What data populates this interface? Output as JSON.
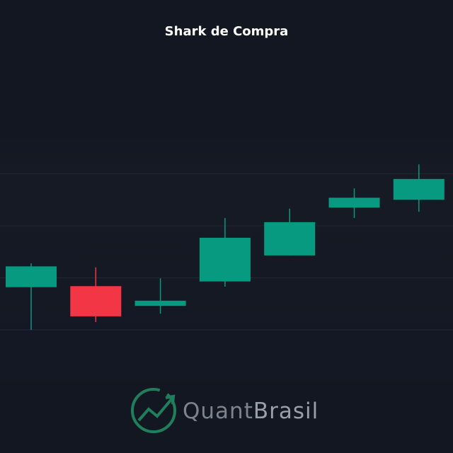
{
  "chart_data": {
    "type": "candlestick",
    "title": "Shark de Compra",
    "categories": [
      null,
      null,
      null,
      null,
      null,
      null,
      null
    ],
    "open": [
      0.82,
      0.84,
      0.46,
      0.93,
      1.43,
      2.35,
      2.5
    ],
    "high": [
      1.28,
      1.2,
      0.99,
      2.15,
      2.33,
      2.72,
      3.18
    ],
    "low": [
      0.0,
      0.15,
      0.31,
      0.83,
      1.43,
      2.15,
      2.27
    ],
    "close": [
      1.22,
      0.26,
      0.56,
      1.77,
      2.07,
      2.54,
      2.9
    ],
    "up_color": "#089981",
    "down_color": "#f23645",
    "ylim": [
      -1,
      4
    ],
    "yticks": [
      0,
      1,
      2,
      3
    ],
    "grid": true
  },
  "logo": {
    "part1": "Quant",
    "part2": "Brasil"
  }
}
